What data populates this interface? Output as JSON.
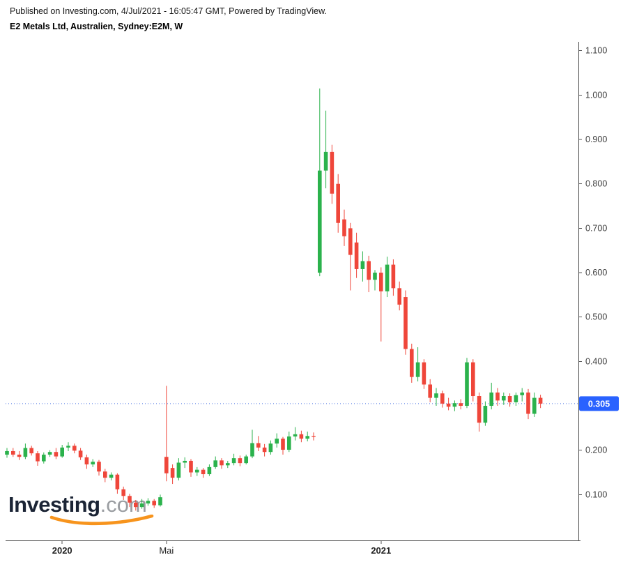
{
  "header": {
    "published_line": "Published on Investing.com, 4/Jul/2021 - 16:05:47 GMT, Powered by TradingView.",
    "instrument_line": "E2 Metals Ltd, Australien, Sydney:E2M, W"
  },
  "watermark": {
    "brand": "Investing",
    "suffix": ".com",
    "swoosh_color": "#f7941d"
  },
  "price_scale": {
    "current_price": "0.305",
    "badge_color": "#2962ff"
  },
  "chart_data": {
    "type": "candlestick",
    "title": "E2 Metals Ltd, Australien, Sydney:E2M, W",
    "symbol": "Sydney:E2M",
    "interval": "W",
    "up_color": "#2bb24c",
    "down_color": "#ef463a",
    "dotted_line_color": "#4d76e3",
    "current_price": 0.305,
    "y_range": [
      0,
      1.12
    ],
    "y_ticks": [
      "1.100",
      "1.000",
      "0.900",
      "0.800",
      "0.700",
      "0.600",
      "0.500",
      "0.400",
      "0.300",
      "0.200",
      "0.100"
    ],
    "x_ticks": [
      {
        "label": "2020",
        "week": 9,
        "bold": true
      },
      {
        "label": "Mai",
        "week": 26,
        "bold": false
      },
      {
        "label": "2021",
        "week": 61,
        "bold": true
      }
    ],
    "start_date": "2019-11-04",
    "interval_days": 7,
    "ohlc_order": [
      "open",
      "high",
      "low",
      "close"
    ],
    "candles": [
      [
        0.19,
        0.205,
        0.183,
        0.198
      ],
      [
        0.198,
        0.205,
        0.185,
        0.19
      ],
      [
        0.19,
        0.198,
        0.178,
        0.185
      ],
      [
        0.185,
        0.215,
        0.18,
        0.205
      ],
      [
        0.205,
        0.21,
        0.188,
        0.193
      ],
      [
        0.193,
        0.198,
        0.165,
        0.175
      ],
      [
        0.175,
        0.195,
        0.17,
        0.19
      ],
      [
        0.19,
        0.2,
        0.185,
        0.196
      ],
      [
        0.196,
        0.205,
        0.18,
        0.186
      ],
      [
        0.186,
        0.212,
        0.183,
        0.206
      ],
      [
        0.206,
        0.218,
        0.198,
        0.21
      ],
      [
        0.21,
        0.215,
        0.193,
        0.199
      ],
      [
        0.199,
        0.205,
        0.178,
        0.184
      ],
      [
        0.184,
        0.19,
        0.158,
        0.168
      ],
      [
        0.168,
        0.18,
        0.162,
        0.174
      ],
      [
        0.174,
        0.178,
        0.143,
        0.152
      ],
      [
        0.152,
        0.158,
        0.128,
        0.138
      ],
      [
        0.138,
        0.15,
        0.132,
        0.145
      ],
      [
        0.145,
        0.148,
        0.102,
        0.112
      ],
      [
        0.112,
        0.118,
        0.088,
        0.097
      ],
      [
        0.097,
        0.102,
        0.072,
        0.082
      ],
      [
        0.082,
        0.088,
        0.064,
        0.072
      ],
      [
        0.072,
        0.09,
        0.068,
        0.08
      ],
      [
        0.08,
        0.092,
        0.075,
        0.086
      ],
      [
        0.086,
        0.09,
        0.07,
        0.076
      ],
      [
        0.076,
        0.1,
        0.073,
        0.094
      ],
      [
        0.185,
        0.345,
        0.13,
        0.148
      ],
      [
        0.16,
        0.168,
        0.124,
        0.138
      ],
      [
        0.138,
        0.182,
        0.132,
        0.172
      ],
      [
        0.172,
        0.184,
        0.16,
        0.176
      ],
      [
        0.176,
        0.18,
        0.14,
        0.15
      ],
      [
        0.15,
        0.162,
        0.142,
        0.156
      ],
      [
        0.156,
        0.16,
        0.138,
        0.146
      ],
      [
        0.146,
        0.168,
        0.142,
        0.162
      ],
      [
        0.162,
        0.186,
        0.158,
        0.177
      ],
      [
        0.177,
        0.182,
        0.158,
        0.166
      ],
      [
        0.166,
        0.176,
        0.16,
        0.171
      ],
      [
        0.171,
        0.192,
        0.166,
        0.182
      ],
      [
        0.182,
        0.188,
        0.164,
        0.171
      ],
      [
        0.171,
        0.19,
        0.168,
        0.186
      ],
      [
        0.186,
        0.246,
        0.182,
        0.216
      ],
      [
        0.216,
        0.232,
        0.198,
        0.206
      ],
      [
        0.206,
        0.214,
        0.186,
        0.196
      ],
      [
        0.196,
        0.222,
        0.19,
        0.215
      ],
      [
        0.215,
        0.238,
        0.206,
        0.226
      ],
      [
        0.226,
        0.23,
        0.19,
        0.201
      ],
      [
        0.201,
        0.242,
        0.196,
        0.231
      ],
      [
        0.231,
        0.252,
        0.222,
        0.236
      ],
      [
        0.236,
        0.244,
        0.218,
        0.226
      ],
      [
        0.226,
        0.242,
        0.22,
        0.232
      ],
      [
        0.232,
        0.24,
        0.222,
        0.23
      ],
      [
        0.6,
        1.015,
        0.592,
        0.83
      ],
      [
        0.83,
        0.965,
        0.79,
        0.872
      ],
      [
        0.872,
        0.888,
        0.755,
        0.778
      ],
      [
        0.8,
        0.822,
        0.69,
        0.712
      ],
      [
        0.72,
        0.742,
        0.66,
        0.682
      ],
      [
        0.7,
        0.712,
        0.56,
        0.64
      ],
      [
        0.668,
        0.69,
        0.588,
        0.608
      ],
      [
        0.608,
        0.648,
        0.58,
        0.626
      ],
      [
        0.626,
        0.638,
        0.556,
        0.584
      ],
      [
        0.584,
        0.606,
        0.56,
        0.6
      ],
      [
        0.6,
        0.612,
        0.445,
        0.558
      ],
      [
        0.558,
        0.636,
        0.545,
        0.618
      ],
      [
        0.618,
        0.63,
        0.548,
        0.565
      ],
      [
        0.565,
        0.58,
        0.515,
        0.528
      ],
      [
        0.545,
        0.56,
        0.415,
        0.428
      ],
      [
        0.428,
        0.44,
        0.352,
        0.365
      ],
      [
        0.365,
        0.432,
        0.355,
        0.398
      ],
      [
        0.398,
        0.405,
        0.338,
        0.348
      ],
      [
        0.348,
        0.36,
        0.308,
        0.318
      ],
      [
        0.318,
        0.34,
        0.3,
        0.328
      ],
      [
        0.328,
        0.334,
        0.296,
        0.305
      ],
      [
        0.305,
        0.318,
        0.29,
        0.298
      ],
      [
        0.298,
        0.312,
        0.288,
        0.306
      ],
      [
        0.306,
        0.315,
        0.292,
        0.3
      ],
      [
        0.3,
        0.408,
        0.295,
        0.398
      ],
      [
        0.398,
        0.405,
        0.31,
        0.322
      ],
      [
        0.322,
        0.33,
        0.242,
        0.262
      ],
      [
        0.262,
        0.31,
        0.255,
        0.3
      ],
      [
        0.3,
        0.352,
        0.292,
        0.33
      ],
      [
        0.33,
        0.34,
        0.3,
        0.312
      ],
      [
        0.312,
        0.33,
        0.302,
        0.322
      ],
      [
        0.322,
        0.328,
        0.298,
        0.308
      ],
      [
        0.308,
        0.33,
        0.3,
        0.324
      ],
      [
        0.324,
        0.34,
        0.31,
        0.33
      ],
      [
        0.33,
        0.338,
        0.27,
        0.282
      ],
      [
        0.282,
        0.33,
        0.275,
        0.318
      ],
      [
        0.318,
        0.325,
        0.295,
        0.305
      ]
    ]
  }
}
